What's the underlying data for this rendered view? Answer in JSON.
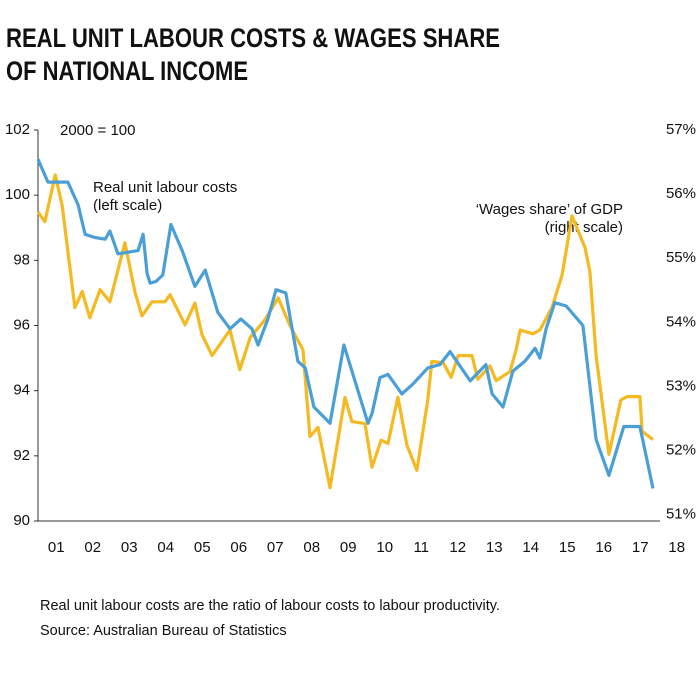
{
  "chart_data": {
    "type": "line",
    "title": [
      "REAL UNIT LABOUR COSTS & WAGES SHARE",
      "OF NATIONAL INCOME"
    ],
    "annotations": [
      "2000 = 100",
      "Real unit labour costs",
      "(left scale)",
      "‘Wages share’ of GDP",
      "(right scale)"
    ],
    "footnotes": [
      "Real unit labour costs are the ratio of labour costs to labour productivity.",
      "Source: Australian Bureau of Statistics"
    ],
    "xlim": [
      2001,
      2019
    ],
    "xticks": [
      {
        "value": 2001.5,
        "label": "01"
      },
      {
        "value": 2002.5,
        "label": "02"
      },
      {
        "value": 2003.5,
        "label": "03"
      },
      {
        "value": 2004.5,
        "label": "04"
      },
      {
        "value": 2005.5,
        "label": "05"
      },
      {
        "value": 2006.5,
        "label": "06"
      },
      {
        "value": 2007.5,
        "label": "07"
      },
      {
        "value": 2008.5,
        "label": "08"
      },
      {
        "value": 2009.5,
        "label": "09"
      },
      {
        "value": 2010.5,
        "label": "10"
      },
      {
        "value": 2011.5,
        "label": "11"
      },
      {
        "value": 2012.5,
        "label": "12"
      },
      {
        "value": 2013.5,
        "label": "13"
      },
      {
        "value": 2014.5,
        "label": "14"
      },
      {
        "value": 2015.5,
        "label": "15"
      },
      {
        "value": 2016.5,
        "label": "16"
      },
      {
        "value": 2017.5,
        "label": "17"
      },
      {
        "value": 2018.5,
        "label": "18"
      }
    ],
    "ylim": [
      90,
      102
    ],
    "yticks": [
      90,
      92,
      94,
      96,
      98,
      100,
      102
    ],
    "y2lim": [
      50.9,
      57
    ],
    "y2ticks": [
      {
        "value": 51,
        "label": "51%"
      },
      {
        "value": 52,
        "label": "52%"
      },
      {
        "value": 53,
        "label": "53%"
      },
      {
        "value": 54,
        "label": "54%"
      },
      {
        "value": 55,
        "label": "55%"
      },
      {
        "value": 56,
        "label": "56%"
      },
      {
        "value": 57,
        "label": "57%"
      }
    ],
    "series": [
      {
        "color": "#f5b921",
        "axis": "y2",
        "x": [
          2001.0,
          2001.19,
          2001.47,
          2001.66,
          2002.01,
          2002.21,
          2002.42,
          2002.7,
          2002.97,
          2003.38,
          2003.66,
          2003.85,
          2004.12,
          2004.48,
          2004.62,
          2005.03,
          2005.3,
          2005.49,
          2005.77,
          2006.26,
          2006.53,
          2006.81,
          2007.22,
          2007.58,
          2007.9,
          2008.26,
          2008.45,
          2008.67,
          2009.0,
          2009.41,
          2009.6,
          2009.96,
          2010.15,
          2010.4,
          2010.59,
          2010.86,
          2011.11,
          2011.38,
          2011.68,
          2011.79,
          2012.1,
          2012.32,
          2012.51,
          2012.89,
          2013.05,
          2013.38,
          2013.55,
          2013.93,
          2014.1,
          2014.21,
          2014.56,
          2014.75,
          2015.08,
          2015.36,
          2015.63,
          2015.99,
          2016.12,
          2016.29,
          2016.64,
          2016.97,
          2017.14,
          2017.49,
          2017.55,
          2017.85
        ],
        "values": [
          55.72,
          55.57,
          56.3,
          55.83,
          54.23,
          54.48,
          54.07,
          54.51,
          54.32,
          55.24,
          54.46,
          54.1,
          54.32,
          54.32,
          54.43,
          53.96,
          54.3,
          53.81,
          53.48,
          53.88,
          53.26,
          53.76,
          54.04,
          54.38,
          53.95,
          53.57,
          52.22,
          52.36,
          51.42,
          52.83,
          52.45,
          52.42,
          51.74,
          52.16,
          52.11,
          52.83,
          52.08,
          51.69,
          52.79,
          53.39,
          53.37,
          53.14,
          53.48,
          53.48,
          53.11,
          53.32,
          53.09,
          53.23,
          53.57,
          53.88,
          53.82,
          53.88,
          54.23,
          54.74,
          55.66,
          55.16,
          54.79,
          53.48,
          51.94,
          52.79,
          52.84,
          52.84,
          52.3,
          52.17
        ]
      },
      {
        "color": "#4a9fd6",
        "axis": "y",
        "x": [
          2001.0,
          2001.27,
          2001.82,
          2002.1,
          2002.29,
          2002.56,
          2002.84,
          2002.97,
          2003.19,
          2003.47,
          2003.74,
          2003.88,
          2003.99,
          2004.07,
          2004.23,
          2004.42,
          2004.64,
          2004.95,
          2005.3,
          2005.58,
          2005.93,
          2006.26,
          2006.56,
          2006.86,
          2007.03,
          2007.3,
          2007.52,
          2007.79,
          2008.12,
          2008.32,
          2008.56,
          2009.0,
          2009.38,
          2010.04,
          2010.15,
          2010.37,
          2010.59,
          2010.97,
          2011.27,
          2011.68,
          2012.01,
          2012.29,
          2012.84,
          2013.27,
          2013.44,
          2013.74,
          2014.01,
          2014.34,
          2014.62,
          2014.75,
          2014.92,
          2015.16,
          2015.47,
          2015.93,
          2016.29,
          2016.64,
          2017.05,
          2017.49,
          2017.85
        ],
        "values": [
          101.1,
          100.4,
          100.4,
          99.7,
          98.8,
          98.7,
          98.65,
          98.9,
          98.2,
          98.25,
          98.3,
          98.8,
          97.6,
          97.3,
          97.35,
          97.55,
          99.1,
          98.3,
          97.2,
          97.7,
          96.4,
          95.9,
          96.2,
          95.9,
          95.4,
          96.2,
          97.1,
          97.0,
          94.9,
          94.7,
          93.5,
          93.0,
          95.4,
          93.0,
          93.3,
          94.4,
          94.5,
          93.9,
          94.2,
          94.7,
          94.8,
          95.2,
          94.3,
          94.8,
          93.9,
          93.5,
          94.6,
          94.9,
          95.3,
          95.0,
          95.9,
          96.7,
          96.6,
          96.0,
          92.5,
          91.4,
          92.9,
          92.9,
          91.0
        ]
      }
    ]
  }
}
